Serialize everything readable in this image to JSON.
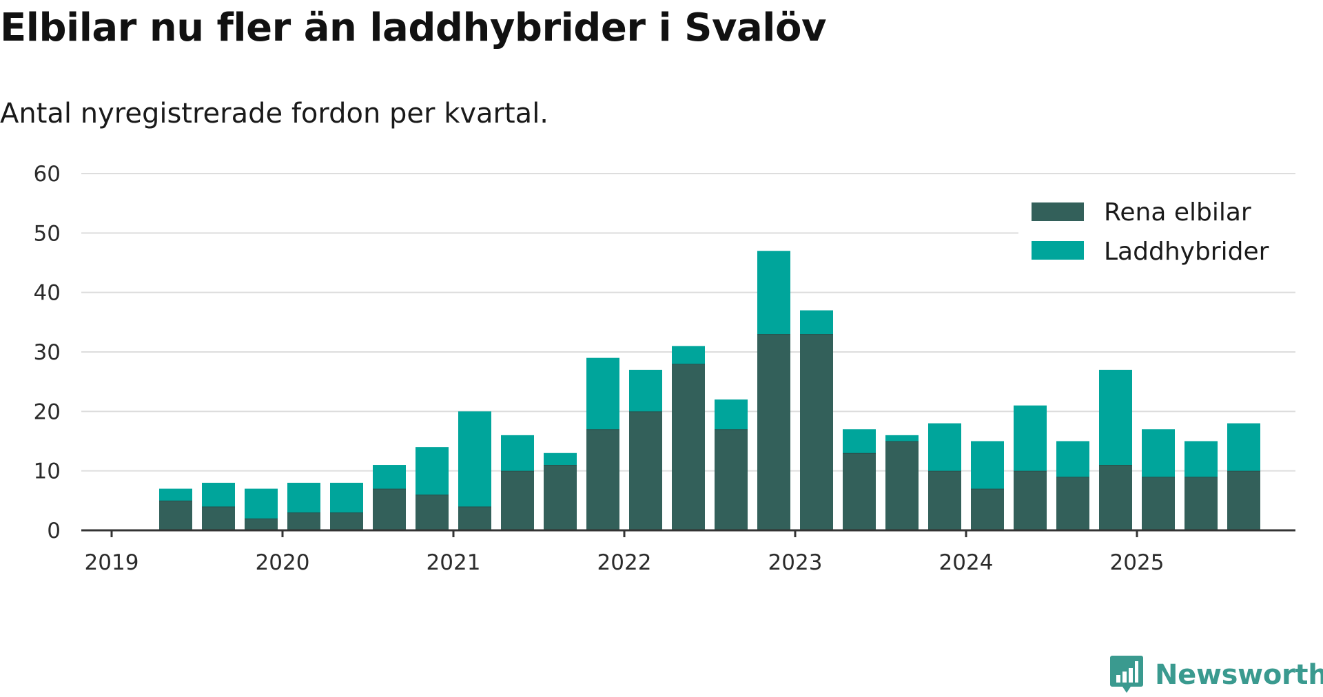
{
  "title": "Elbilar nu fler än laddhybrider i Svalöv",
  "subtitle": "Antal nyregistrerade fordon per kvartal.",
  "brand": {
    "name": "Newsworthy",
    "icon": "newsworthy-logo-icon",
    "color": "#3a9a8f"
  },
  "colors": {
    "rena_elbilar": "#33605a",
    "laddhybrider": "#00a59b",
    "grid": "#dddddd",
    "axis": "#333333"
  },
  "chart_data": {
    "type": "bar",
    "stacked": true,
    "categories": [
      "2019-Q2",
      "2019-Q3",
      "2019-Q4",
      "2020-Q1",
      "2020-Q2",
      "2020-Q3",
      "2020-Q4",
      "2021-Q1",
      "2021-Q2",
      "2021-Q3",
      "2021-Q4",
      "2022-Q1",
      "2022-Q2",
      "2022-Q3",
      "2022-Q4",
      "2023-Q1",
      "2023-Q2",
      "2023-Q3",
      "2023-Q4",
      "2024-Q1",
      "2024-Q2",
      "2024-Q3",
      "2024-Q4",
      "2025-Q1",
      "2025-Q2",
      "2025-Q3"
    ],
    "series": [
      {
        "name": "Rena elbilar",
        "values": [
          5,
          4,
          2,
          3,
          3,
          7,
          6,
          4,
          10,
          11,
          17,
          20,
          28,
          17,
          33,
          33,
          13,
          15,
          10,
          7,
          10,
          9,
          11,
          9,
          9,
          10
        ]
      },
      {
        "name": "Laddhybrider",
        "values": [
          2,
          4,
          5,
          5,
          5,
          4,
          8,
          16,
          6,
          2,
          12,
          7,
          3,
          5,
          14,
          4,
          4,
          1,
          8,
          8,
          11,
          6,
          16,
          8,
          6,
          8
        ]
      }
    ],
    "x_ticks": [
      "2019",
      "2020",
      "2021",
      "2022",
      "2023",
      "2024",
      "2025"
    ],
    "y_ticks": [
      0,
      10,
      20,
      30,
      40,
      50,
      60
    ],
    "ylim": [
      0,
      60
    ],
    "grid": true,
    "legend_position": "top-right"
  }
}
